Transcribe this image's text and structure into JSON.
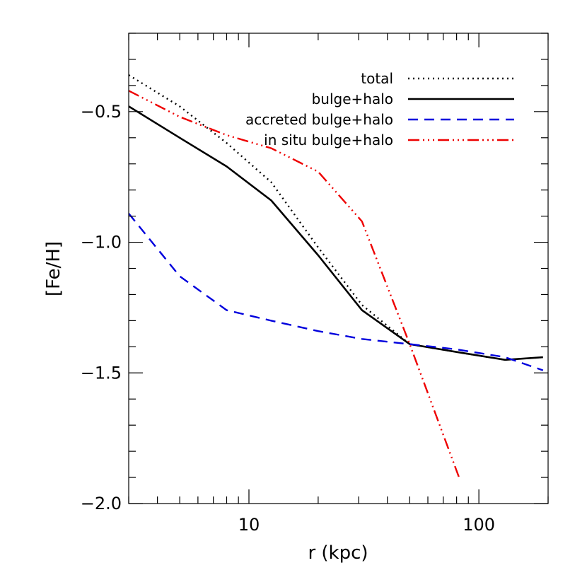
{
  "chart_data": {
    "type": "line",
    "title": "",
    "xlabel": "r (kpc)",
    "ylabel": "[Fe/H]",
    "xscale": "log",
    "xlim": [
      3,
      200
    ],
    "ylim": [
      -2.0,
      -0.2
    ],
    "x_ticks_major": [
      {
        "value": 10,
        "label": "10"
      },
      {
        "value": 100,
        "label": "100"
      }
    ],
    "y_ticks_major": [
      {
        "value": -0.5,
        "label": "−0.5"
      },
      {
        "value": -1.0,
        "label": "−1.0"
      },
      {
        "value": -1.5,
        "label": "−1.5"
      },
      {
        "value": -2.0,
        "label": "−2.0"
      }
    ],
    "grid": false,
    "legend_position": "top-right",
    "series": [
      {
        "name": "total",
        "color": "#000000",
        "dash": "dotted",
        "x": [
          3,
          5,
          8,
          12.5,
          20,
          31,
          50,
          80,
          130,
          190
        ],
        "y": [
          -0.36,
          -0.48,
          -0.62,
          -0.77,
          -1.02,
          -1.24,
          -1.39,
          -1.42,
          -1.45,
          -1.44
        ]
      },
      {
        "name": "bulge+halo",
        "color": "#000000",
        "dash": "solid",
        "x": [
          3,
          5,
          8,
          12.5,
          20,
          31,
          50,
          80,
          130,
          190
        ],
        "y": [
          -0.48,
          -0.6,
          -0.71,
          -0.84,
          -1.05,
          -1.26,
          -1.39,
          -1.42,
          -1.45,
          -1.44
        ]
      },
      {
        "name": "accreted bulge+halo",
        "color": "#0000dd",
        "dash": "dashed",
        "x": [
          3,
          5,
          8,
          12.5,
          20,
          31,
          50,
          80,
          130,
          190
        ],
        "y": [
          -0.89,
          -1.13,
          -1.26,
          -1.3,
          -1.34,
          -1.37,
          -1.39,
          -1.41,
          -1.44,
          -1.49
        ]
      },
      {
        "name": "in situ bulge+halo",
        "color": "#ee0000",
        "dash": "dash-dot-dot",
        "x": [
          3,
          5,
          8,
          12.5,
          20,
          31,
          50,
          82
        ],
        "y": [
          -0.42,
          -0.52,
          -0.59,
          -0.64,
          -0.73,
          -0.92,
          -1.39,
          -1.9
        ]
      }
    ]
  }
}
